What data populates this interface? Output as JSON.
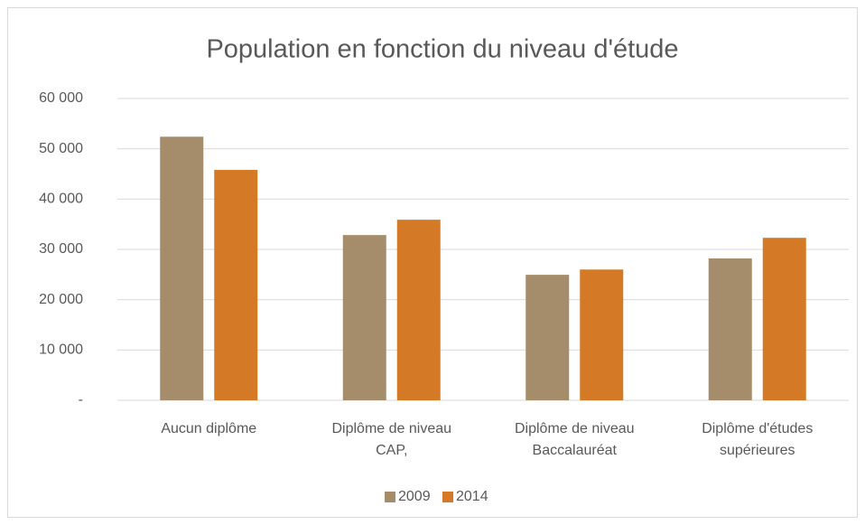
{
  "chart_data": {
    "type": "bar",
    "title": "Population en fonction du niveau d'étude",
    "categories": [
      "Aucun diplôme",
      "Diplôme de niveau CAP,",
      "Diplôme de niveau Baccalauréat",
      "Diplôme d'études supérieures"
    ],
    "series": [
      {
        "name": "2009",
        "color": "#a58c6a",
        "values": [
          52400,
          32850,
          24950,
          28200
        ]
      },
      {
        "name": "2014",
        "color": "#d47a26",
        "values": [
          45800,
          35900,
          26000,
          32300
        ]
      }
    ],
    "ylim": [
      0,
      60000
    ],
    "yticks": [
      {
        "value": 0,
        "label": "-"
      },
      {
        "value": 10000,
        "label": "10 000"
      },
      {
        "value": 20000,
        "label": "20 000"
      },
      {
        "value": 30000,
        "label": "30 000"
      },
      {
        "value": 40000,
        "label": "40 000"
      },
      {
        "value": 50000,
        "label": "50 000"
      },
      {
        "value": 60000,
        "label": "60 000"
      }
    ],
    "grid": true,
    "legend": "bottom"
  }
}
